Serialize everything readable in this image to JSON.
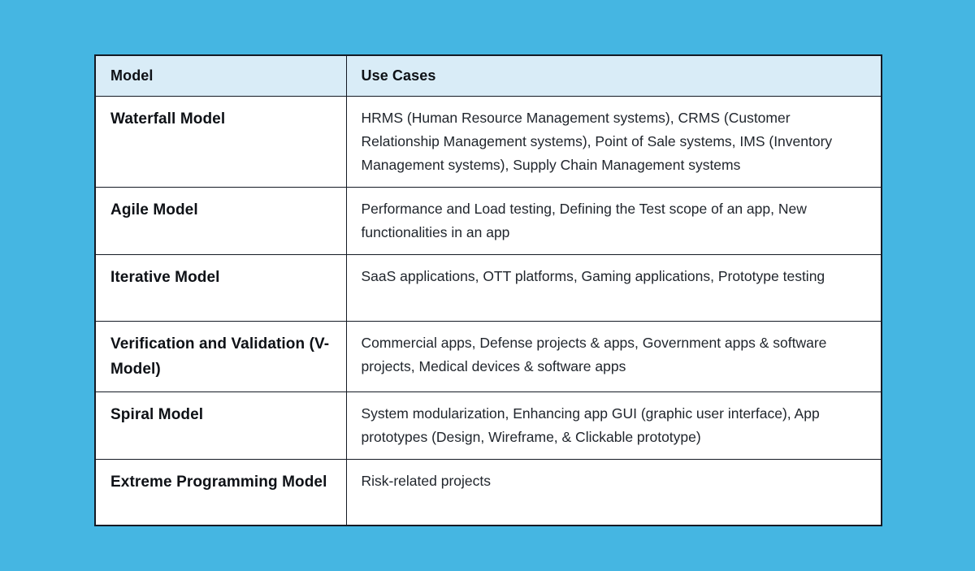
{
  "page": {
    "background_color": "#45b6e2"
  },
  "table": {
    "header_bg_color": "#d9ecf7",
    "body_bg_color": "#ffffff",
    "border_color": "#141a24",
    "columns": [
      {
        "label": "Model"
      },
      {
        "label": "Use Cases"
      }
    ],
    "rows": [
      {
        "model": "Waterfall Model",
        "use_cases": "HRMS (Human Resource Management systems), CRMS (Customer Relationship Management systems), Point of Sale systems, IMS (Inventory Management systems), Supply Chain Management systems"
      },
      {
        "model": "Agile Model",
        "use_cases": "Performance and Load testing, Defining the Test scope of an app, New functionalities in an app"
      },
      {
        "model": "Iterative Model",
        "use_cases": "SaaS applications, OTT platforms, Gaming applications, Prototype testing"
      },
      {
        "model": "Verification and Validation (V-Model)",
        "use_cases": "Commercial apps, Defense projects & apps, Government apps & software projects, Medical devices & software apps"
      },
      {
        "model": "Spiral Model",
        "use_cases": "System modularization, Enhancing app GUI (graphic user interface), App prototypes (Design, Wireframe, & Clickable prototype)"
      },
      {
        "model": "Extreme Programming Model",
        "use_cases": "Risk-related projects"
      }
    ]
  }
}
